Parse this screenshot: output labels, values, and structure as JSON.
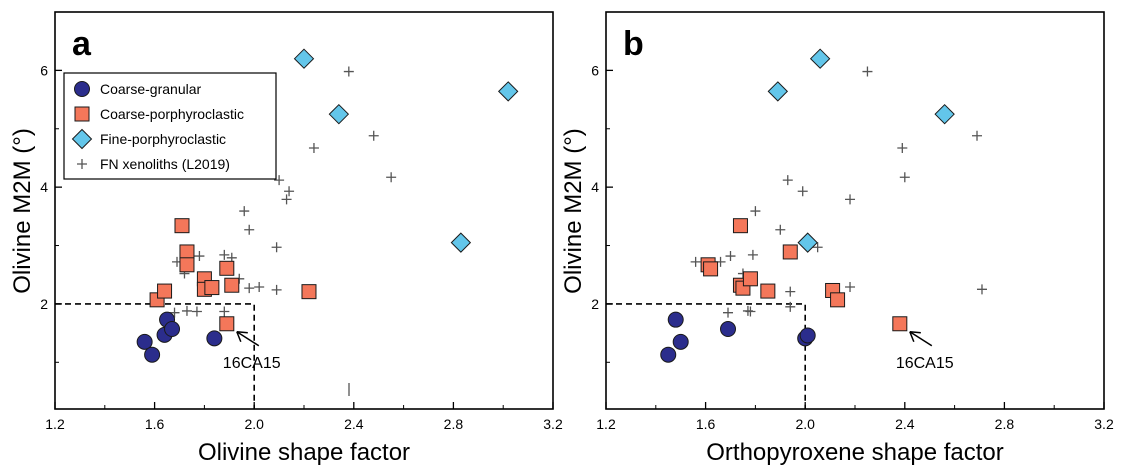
{
  "colors": {
    "coarse_granular": "#2b2d8c",
    "coarse_porphyroclastic": "#f4775a",
    "fine_porphyroclastic": "#63c6ea",
    "fn_xenoliths": "#555555",
    "axis": "#000000"
  },
  "chart_data": [
    {
      "type": "scatter",
      "panel_label": "a",
      "xlabel": "Olivine shape factor",
      "ylabel": "Olivine M2M (°)",
      "xlim": [
        1.2,
        3.2
      ],
      "ylim": [
        0.2,
        7.0
      ],
      "xticks": [
        1.2,
        1.6,
        2.0,
        2.4,
        2.8,
        3.2
      ],
      "xtick_labels": [
        "1.2",
        "1.6",
        "2.0",
        "2.4",
        "2.8",
        "3.2"
      ],
      "yticks": [
        2,
        4,
        6
      ],
      "ytick_labels": [
        "2",
        "4",
        "6"
      ],
      "threshold": {
        "x": 2.0,
        "y": 2.0
      },
      "annotation": {
        "text": "16CA15",
        "x": 1.89,
        "y": 1.66
      },
      "legend": {
        "position": "top-left",
        "entries": [
          "Coarse-granular",
          "Coarse-porphyroclastic",
          "Fine-porphyroclastic",
          "FN xenoliths (L2019)"
        ]
      },
      "series": [
        {
          "name": "Coarse-granular",
          "marker": "circle",
          "points": [
            [
              1.56,
              1.35
            ],
            [
              1.59,
              1.13
            ],
            [
              1.64,
              1.47
            ],
            [
              1.65,
              1.73
            ],
            [
              1.67,
              1.57
            ],
            [
              1.84,
              1.41
            ]
          ]
        },
        {
          "name": "Coarse-porphyroclastic",
          "marker": "square",
          "points": [
            [
              1.61,
              2.07
            ],
            [
              1.64,
              2.22
            ],
            [
              1.71,
              3.34
            ],
            [
              1.73,
              2.89
            ],
            [
              1.73,
              2.67
            ],
            [
              1.8,
              2.43
            ],
            [
              1.8,
              2.25
            ],
            [
              1.83,
              2.28
            ],
            [
              1.89,
              2.61
            ],
            [
              1.91,
              2.32
            ],
            [
              1.89,
              1.66
            ],
            [
              2.22,
              2.21
            ]
          ]
        },
        {
          "name": "Fine-porphyroclastic",
          "marker": "diamond",
          "points": [
            [
              2.2,
              6.2
            ],
            [
              2.34,
              5.25
            ],
            [
              2.83,
              3.05
            ],
            [
              3.02,
              5.64
            ]
          ]
        },
        {
          "name": "FN xenoliths (L2019)",
          "marker": "plus",
          "points": [
            [
              2.38,
              5.98
            ],
            [
              2.48,
              4.88
            ],
            [
              2.24,
              4.67
            ],
            [
              2.55,
              4.17
            ],
            [
              2.1,
              4.12
            ],
            [
              2.14,
              3.93
            ],
            [
              2.13,
              3.79
            ],
            [
              1.96,
              3.59
            ],
            [
              1.98,
              3.27
            ],
            [
              2.09,
              2.97
            ],
            [
              1.69,
              2.72
            ],
            [
              1.72,
              2.52
            ],
            [
              1.78,
              2.82
            ],
            [
              1.88,
              2.84
            ],
            [
              1.91,
              2.79
            ],
            [
              1.94,
              2.43
            ],
            [
              1.98,
              2.27
            ],
            [
              2.02,
              2.29
            ],
            [
              2.09,
              2.24
            ],
            [
              1.68,
              1.85
            ],
            [
              1.73,
              1.88
            ],
            [
              1.77,
              1.87
            ],
            [
              1.88,
              1.87
            ]
          ]
        }
      ]
    },
    {
      "type": "scatter",
      "panel_label": "b",
      "xlabel": "Orthopyroxene shape factor",
      "ylabel": "Olivine M2M (°)",
      "xlim": [
        1.2,
        3.2
      ],
      "ylim": [
        0.2,
        7.0
      ],
      "xticks": [
        1.2,
        1.6,
        2.0,
        2.4,
        2.8,
        3.2
      ],
      "xtick_labels": [
        "1.2",
        "1.6",
        "2.0",
        "2.4",
        "2.8",
        "3.2"
      ],
      "yticks": [
        2,
        4,
        6
      ],
      "ytick_labels": [
        "2",
        "4",
        "6"
      ],
      "threshold": {
        "x": 2.0,
        "y": 2.0
      },
      "annotation": {
        "text": "16CA15",
        "x": 2.38,
        "y": 1.66
      },
      "legend": null,
      "series": [
        {
          "name": "Coarse-granular",
          "marker": "circle",
          "points": [
            [
              1.45,
              1.13
            ],
            [
              1.48,
              1.73
            ],
            [
              1.5,
              1.35
            ],
            [
              1.69,
              1.57
            ],
            [
              2.0,
              1.41
            ],
            [
              2.01,
              1.46
            ]
          ]
        },
        {
          "name": "Coarse-porphyroclastic",
          "marker": "square",
          "points": [
            [
              1.61,
              2.67
            ],
            [
              1.62,
              2.6
            ],
            [
              1.74,
              3.34
            ],
            [
              1.74,
              2.32
            ],
            [
              1.75,
              2.27
            ],
            [
              1.78,
              2.43
            ],
            [
              1.85,
              2.22
            ],
            [
              1.94,
              2.89
            ],
            [
              2.11,
              2.23
            ],
            [
              2.13,
              2.07
            ],
            [
              2.38,
              1.66
            ]
          ]
        },
        {
          "name": "Fine-porphyroclastic",
          "marker": "diamond",
          "points": [
            [
              1.89,
              5.64
            ],
            [
              2.06,
              6.2
            ],
            [
              2.01,
              3.05
            ],
            [
              2.56,
              5.25
            ]
          ]
        },
        {
          "name": "FN xenoliths (L2019)",
          "marker": "plus",
          "points": [
            [
              2.25,
              5.98
            ],
            [
              2.69,
              4.88
            ],
            [
              2.39,
              4.67
            ],
            [
              2.4,
              4.17
            ],
            [
              1.93,
              4.12
            ],
            [
              1.99,
              3.93
            ],
            [
              2.18,
              3.79
            ],
            [
              1.8,
              3.59
            ],
            [
              1.9,
              3.27
            ],
            [
              2.05,
              2.97
            ],
            [
              1.56,
              2.72
            ],
            [
              1.66,
              2.72
            ],
            [
              1.7,
              2.82
            ],
            [
              1.75,
              2.52
            ],
            [
              1.79,
              2.84
            ],
            [
              1.94,
              2.21
            ],
            [
              2.18,
              2.29
            ],
            [
              2.71,
              2.25
            ],
            [
              1.69,
              1.85
            ],
            [
              1.77,
              1.88
            ],
            [
              1.78,
              1.87
            ],
            [
              1.94,
              1.95
            ]
          ]
        }
      ]
    }
  ]
}
